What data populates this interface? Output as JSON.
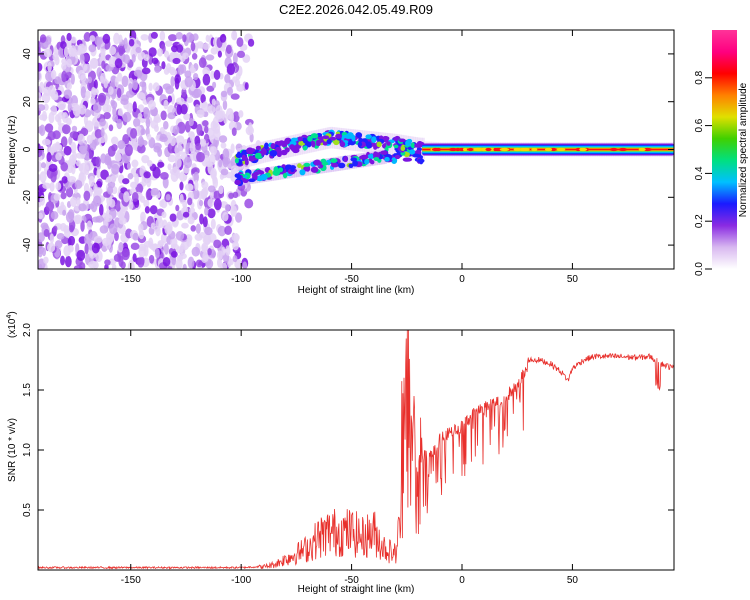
{
  "title": "C2E2.2026.042.05.49.R09",
  "chart_data": [
    {
      "type": "heatmap",
      "xlabel": "Height of straight line (km)",
      "ylabel": "Frequency (Hz)",
      "xlim": [
        -192,
        96
      ],
      "ylim": [
        -50,
        50
      ],
      "xticks": [
        -150,
        -100,
        -50,
        0,
        50
      ],
      "xtick_labels": [
        "-150",
        "-100",
        "-50",
        "0",
        "50"
      ],
      "yticks": [
        -40,
        -20,
        0,
        20,
        40
      ],
      "ytick_labels": [
        "-40",
        "-20",
        "0",
        "20",
        "40"
      ],
      "colorbar": {
        "label": "Normalized spectral amplitude",
        "range": [
          0,
          1
        ],
        "ticks": [
          0.0,
          0.2,
          0.4,
          0.6,
          0.8
        ],
        "tick_labels": [
          "0.0",
          "0.2",
          "0.4",
          "0.6",
          "0.8"
        ],
        "stops": [
          "#ffffff",
          "#d8b8f0",
          "#8a2be2",
          "#1a1aff",
          "#00c0ff",
          "#00e080",
          "#40d000",
          "#e0e000",
          "#ff8000",
          "#ff0000",
          "#ff0080",
          "#ff3399"
        ]
      },
      "regions": [
        {
          "name": "noise",
          "x": [
            -192,
            -92
          ],
          "freq": [
            -50,
            48
          ],
          "amplitude": 0.15
        },
        {
          "name": "rising-branch-upper",
          "x": [
            -102,
            -18
          ],
          "freq": [
            -3,
            7
          ],
          "amplitude": 0.3
        },
        {
          "name": "rising-branch-lower",
          "x": [
            -100,
            -35
          ],
          "freq": [
            -13,
            2
          ],
          "amplitude": 0.25
        },
        {
          "name": "carrier",
          "x": [
            -18,
            96
          ],
          "freq": [
            -1,
            1
          ],
          "amplitude": 0.95
        }
      ],
      "carrier_line": {
        "x": [
          -102,
          -90,
          -80,
          -70,
          -60,
          -50,
          -40,
          -30,
          -20,
          -10,
          0,
          20,
          40,
          60,
          80,
          96
        ],
        "freq": [
          -4,
          -1,
          1,
          3,
          5,
          4,
          3,
          2,
          0.5,
          0,
          0,
          0,
          0,
          0,
          0,
          0
        ]
      }
    },
    {
      "type": "line",
      "xlabel": "Height of straight line (km)",
      "ylabel": "SNR (10 * v/v)",
      "ylabel_scale": "(x10",
      "ylabel_scale_exp": "4",
      "ylabel_scale_close": ")",
      "xlim": [
        -192,
        96
      ],
      "ylim": [
        0,
        2.0
      ],
      "xticks": [
        -150,
        -100,
        -50,
        0,
        50
      ],
      "xtick_labels": [
        "-150",
        "-100",
        "-50",
        "0",
        "50"
      ],
      "yticks": [
        0.5,
        1.0,
        1.5,
        2.0
      ],
      "ytick_labels": [
        "0.5",
        "1.0",
        "1.5",
        "2.0"
      ],
      "color": "#e8302c",
      "series": [
        {
          "name": "SNR",
          "x": [
            -192,
            -170,
            -150,
            -120,
            -100,
            -90,
            -85,
            -80,
            -75,
            -70,
            -65,
            -60,
            -55,
            -50,
            -45,
            -40,
            -35,
            -30,
            -27,
            -25,
            -23,
            -21,
            -18,
            -15,
            -12,
            -10,
            -5,
            0,
            5,
            10,
            15,
            20,
            25,
            30,
            35,
            40,
            45,
            48,
            50,
            55,
            60,
            70,
            80,
            85,
            90,
            96
          ],
          "y": [
            0.02,
            0.02,
            0.02,
            0.02,
            0.02,
            0.03,
            0.05,
            0.1,
            0.15,
            0.2,
            0.3,
            0.35,
            0.35,
            0.35,
            0.3,
            0.35,
            0.2,
            0.15,
            0.6,
            1.8,
            1.0,
            0.9,
            1.0,
            1.0,
            1.05,
            1.15,
            1.2,
            1.25,
            1.35,
            1.4,
            1.45,
            1.5,
            1.6,
            1.75,
            1.75,
            1.72,
            1.65,
            1.58,
            1.68,
            1.75,
            1.78,
            1.78,
            1.77,
            1.78,
            1.72,
            1.68
          ]
        }
      ]
    }
  ]
}
